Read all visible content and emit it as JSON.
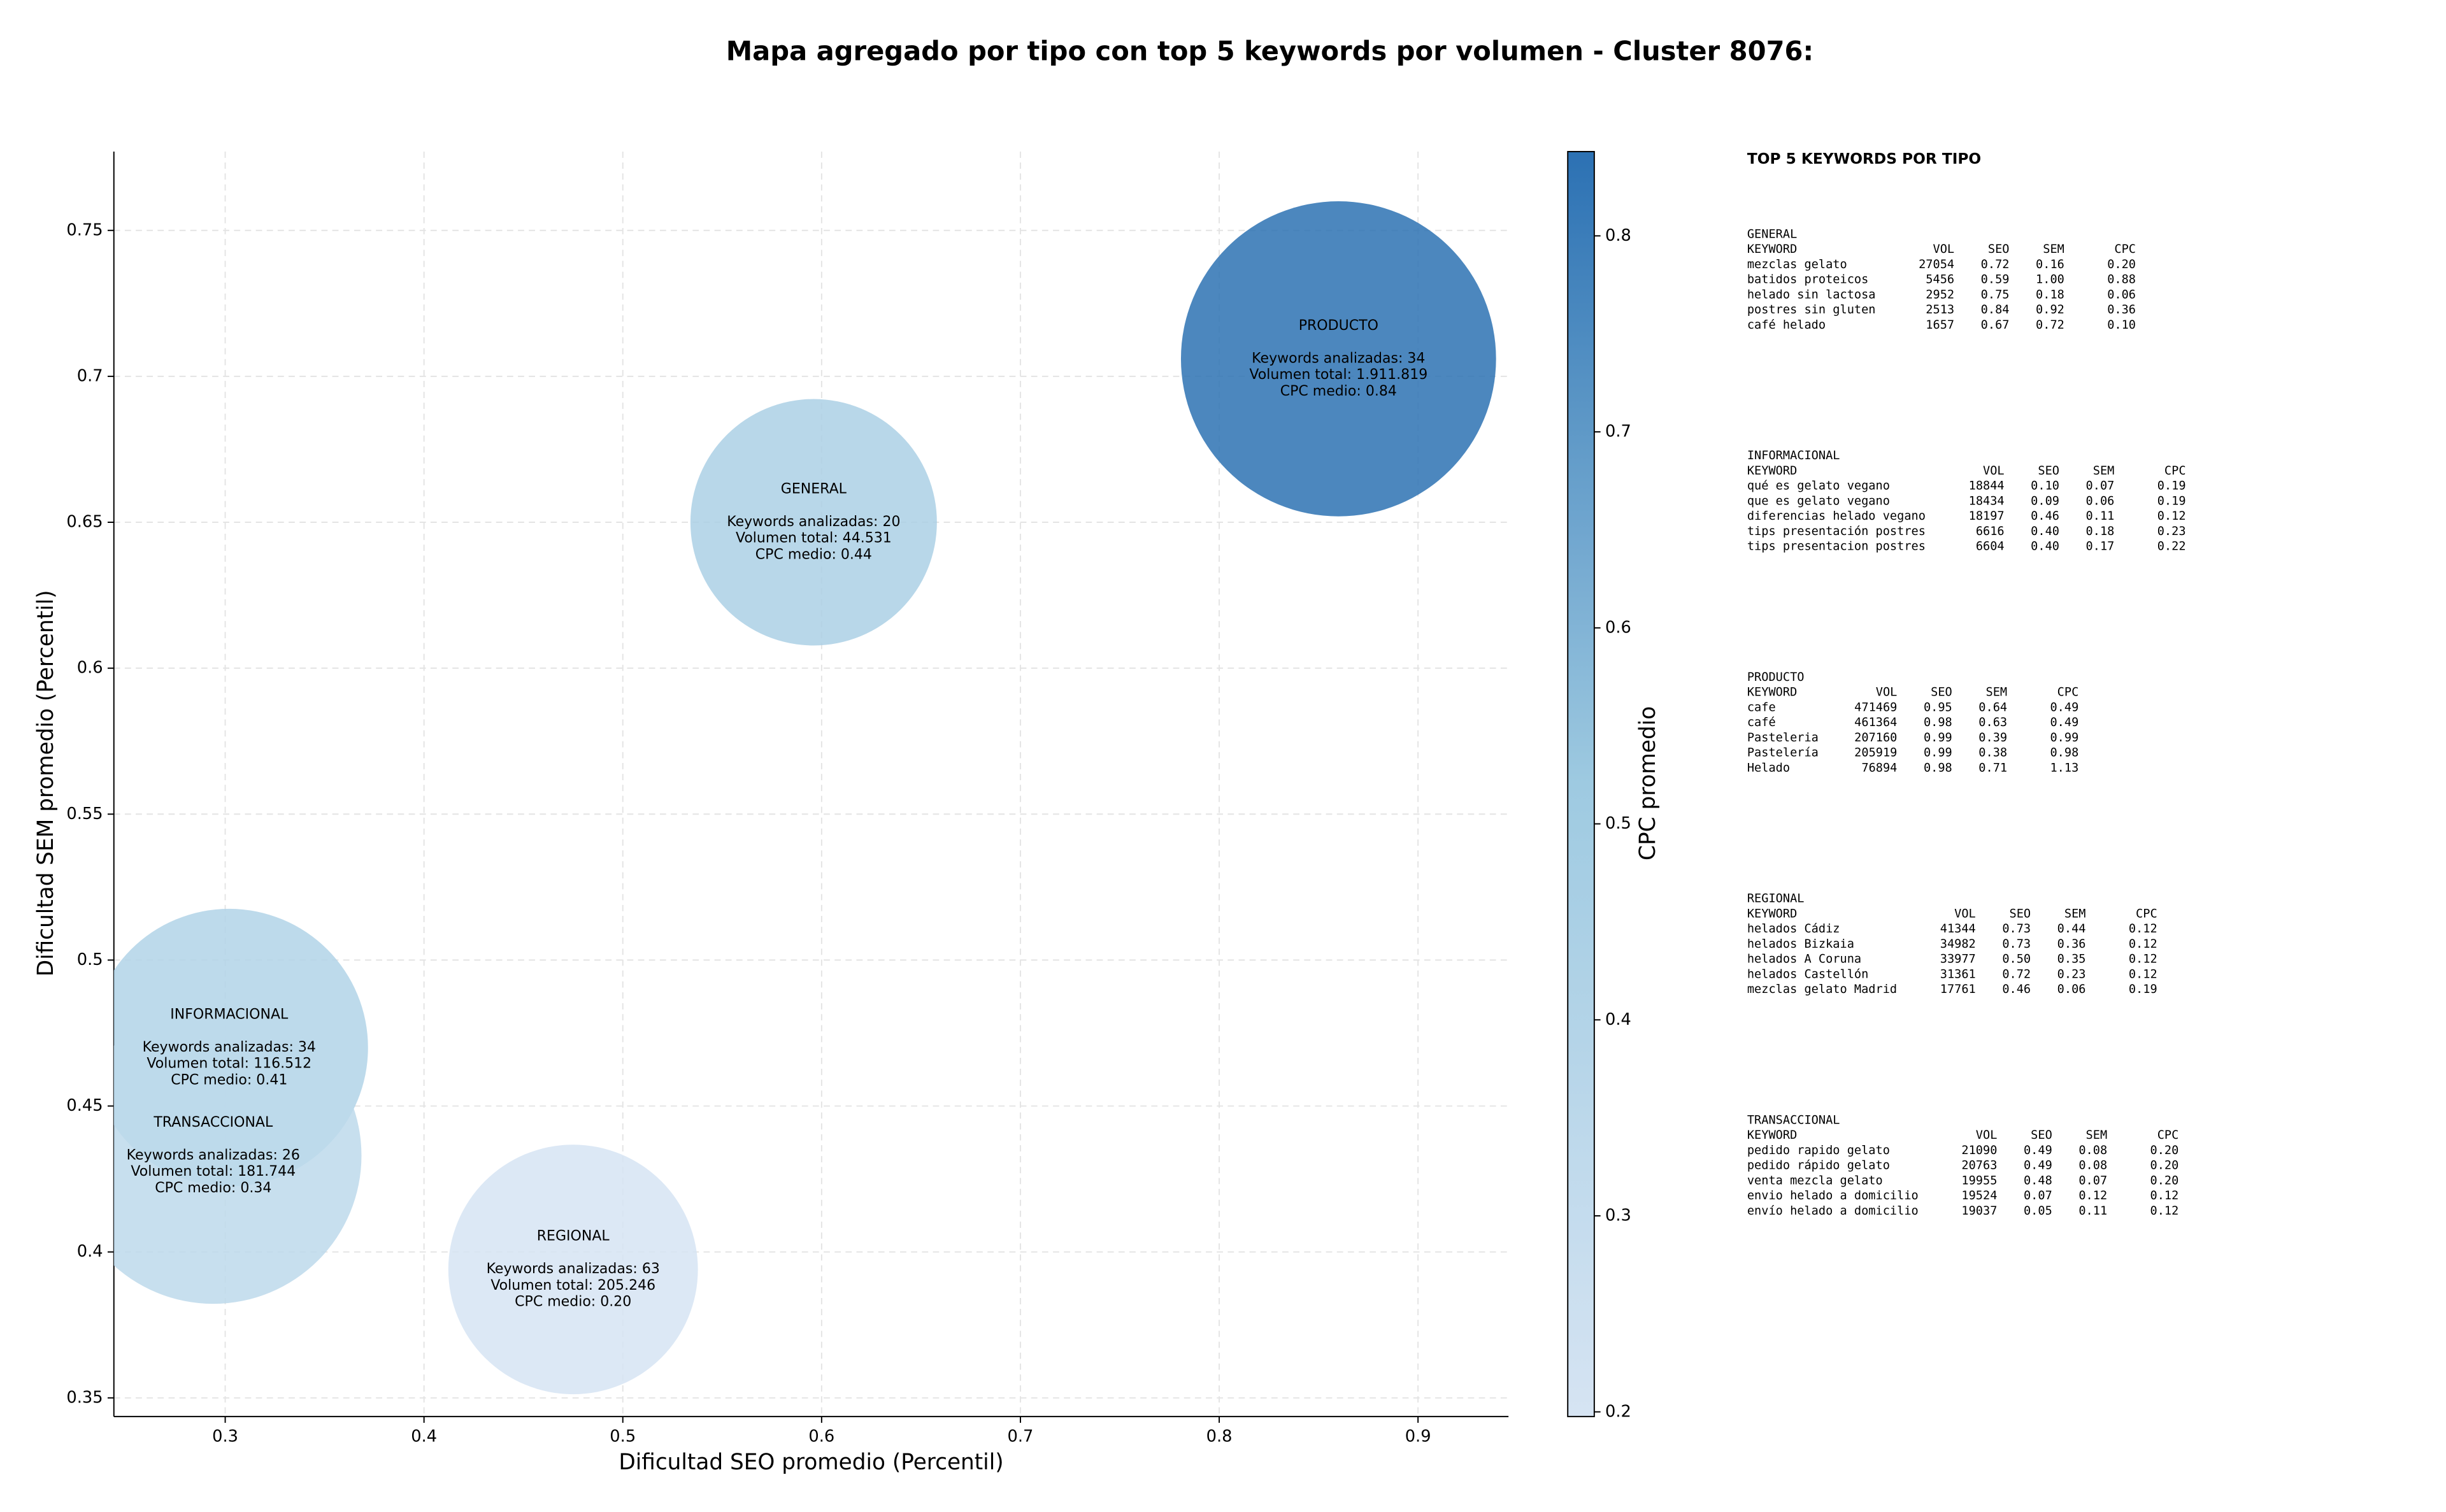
{
  "chart_data": {
    "type": "bubble",
    "title": "Mapa agregado por tipo con top 5 keywords por volumen - Cluster 8076:",
    "x_label": "Dificultad SEO promedio (Percentil)",
    "y_label": "Dificultad SEM promedio (Percentil)",
    "colorbar_label": "CPC promedio",
    "xlim": [
      0.244,
      0.9455
    ],
    "ylim": [
      0.3436,
      0.777
    ],
    "xticks": [
      0.3,
      0.4,
      0.5,
      0.6,
      0.7,
      0.8,
      0.9
    ],
    "yticks": [
      0.35,
      0.4,
      0.45,
      0.5,
      0.55,
      0.6,
      0.65,
      0.7,
      0.75
    ],
    "clim": [
      0.1976,
      0.843
    ],
    "cticks": [
      0.2,
      0.3,
      0.4,
      0.5,
      0.6,
      0.7,
      0.8
    ],
    "colormap": [
      "#d6e4f3",
      "#9ecae1",
      "#2c71b3"
    ],
    "grid": true,
    "points": [
      {
        "name": "GENERAL",
        "x": 0.596,
        "y": 0.65,
        "cpc": 0.44,
        "size": 79,
        "annotation": [
          "Keywords analizadas: 20",
          "Volumen total: 44.531",
          "CPC medio: 0.44"
        ]
      },
      {
        "name": "INFORMACIONAL",
        "x": 0.302,
        "y": 0.47,
        "cpc": 0.41,
        "size": 89,
        "annotation": [
          "Keywords analizadas: 34",
          "Volumen total: 116.512",
          "CPC medio: 0.41"
        ]
      },
      {
        "name": "PRODUCTO",
        "x": 0.86,
        "y": 0.706,
        "cpc": 0.84,
        "size": 101,
        "annotation": [
          "Keywords analizadas: 34",
          "Volumen total: 1.911.819",
          "CPC medio: 0.84"
        ]
      },
      {
        "name": "REGIONAL",
        "x": 0.475,
        "y": 0.394,
        "cpc": 0.2,
        "size": 80,
        "annotation": [
          "Keywords analizadas: 63",
          "Volumen total: 205.246",
          "CPC medio: 0.20"
        ]
      },
      {
        "name": "TRANSACCIONAL",
        "x": 0.294,
        "y": 0.433,
        "cpc": 0.34,
        "size": 95,
        "annotation": [
          "Keywords analizadas: 26",
          "Volumen total: 181.744",
          "CPC medio: 0.34"
        ]
      }
    ]
  },
  "panel": {
    "title": "TOP 5 KEYWORDS POR TIPO",
    "header": [
      "KEYWORD",
      "VOL",
      "SEO",
      "SEM",
      "CPC"
    ],
    "sections": [
      {
        "name": "GENERAL",
        "rows": [
          [
            "mezclas gelato",
            "27054",
            "0.72",
            "0.16",
            "0.20"
          ],
          [
            "batidos proteicos",
            "5456",
            "0.59",
            "1.00",
            "0.88"
          ],
          [
            "helado sin lactosa",
            "2952",
            "0.75",
            "0.18",
            "0.06"
          ],
          [
            "postres sin gluten",
            "2513",
            "0.84",
            "0.92",
            "0.36"
          ],
          [
            "café helado",
            "1657",
            "0.67",
            "0.72",
            "0.10"
          ]
        ]
      },
      {
        "name": "INFORMACIONAL",
        "rows": [
          [
            "qué es gelato vegano",
            "18844",
            "0.10",
            "0.07",
            "0.19"
          ],
          [
            "que es gelato vegano",
            "18434",
            "0.09",
            "0.06",
            "0.19"
          ],
          [
            "diferencias helado vegano",
            "18197",
            "0.46",
            "0.11",
            "0.12"
          ],
          [
            "tips presentación postres",
            "6616",
            "0.40",
            "0.18",
            "0.23"
          ],
          [
            "tips presentacion postres",
            "6604",
            "0.40",
            "0.17",
            "0.22"
          ]
        ]
      },
      {
        "name": "PRODUCTO",
        "rows": [
          [
            "cafe",
            "471469",
            "0.95",
            "0.64",
            "0.49"
          ],
          [
            "café",
            "461364",
            "0.98",
            "0.63",
            "0.49"
          ],
          [
            "Pasteleria",
            "207160",
            "0.99",
            "0.39",
            "0.99"
          ],
          [
            "Pastelería",
            "205919",
            "0.99",
            "0.38",
            "0.98"
          ],
          [
            "Helado",
            "76894",
            "0.98",
            "0.71",
            "1.13"
          ]
        ]
      },
      {
        "name": "REGIONAL",
        "rows": [
          [
            "helados Cádiz",
            "41344",
            "0.73",
            "0.44",
            "0.12"
          ],
          [
            "helados Bizkaia",
            "34982",
            "0.73",
            "0.36",
            "0.12"
          ],
          [
            "helados A Coruna",
            "33977",
            "0.50",
            "0.35",
            "0.12"
          ],
          [
            "helados Castellón",
            "31361",
            "0.72",
            "0.23",
            "0.12"
          ],
          [
            "mezclas gelato Madrid",
            "17761",
            "0.46",
            "0.06",
            "0.19"
          ]
        ]
      },
      {
        "name": "TRANSACCIONAL",
        "rows": [
          [
            "pedido rapido gelato",
            "21090",
            "0.49",
            "0.08",
            "0.20"
          ],
          [
            "pedido rápido gelato",
            "20763",
            "0.49",
            "0.08",
            "0.20"
          ],
          [
            "venta mezcla gelato",
            "19955",
            "0.48",
            "0.07",
            "0.20"
          ],
          [
            "envio helado a domicilio",
            "19524",
            "0.07",
            "0.12",
            "0.12"
          ],
          [
            "envío helado a domicilio",
            "19037",
            "0.05",
            "0.11",
            "0.12"
          ]
        ]
      }
    ]
  }
}
